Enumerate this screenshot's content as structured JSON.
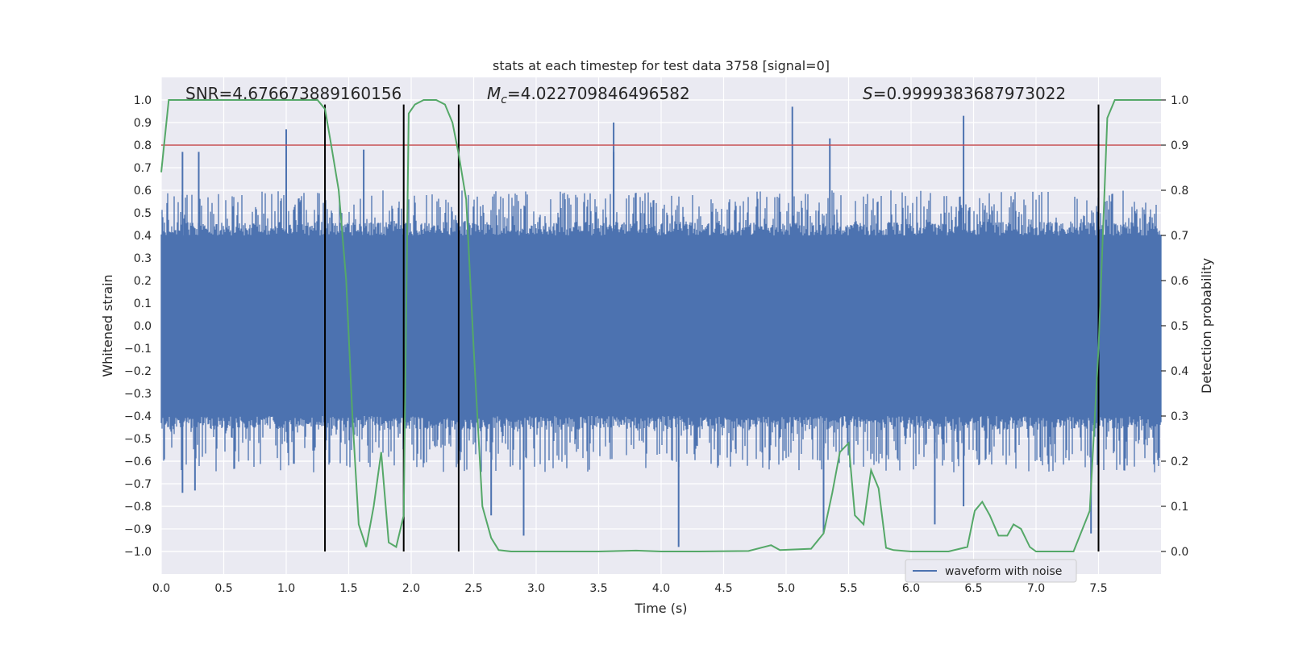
{
  "chart_data": {
    "type": "line",
    "title": "stats at each timestep for test data 3758 [signal=0]",
    "xlabel": "Time (s)",
    "ylabel": "Whitened strain",
    "y2label": "Detection probability",
    "xlim": [
      0,
      8
    ],
    "ylim": [
      -1.1,
      1.1
    ],
    "y2lim": [
      -0.05,
      1.05
    ],
    "xticks": [
      "0.0",
      "0.5",
      "1.0",
      "1.5",
      "2.0",
      "2.5",
      "3.0",
      "3.5",
      "4.0",
      "4.5",
      "5.0",
      "5.5",
      "6.0",
      "6.5",
      "7.0",
      "7.5"
    ],
    "yticks": [
      "1.0",
      "0.9",
      "0.8",
      "0.7",
      "0.6",
      "0.5",
      "0.4",
      "0.3",
      "0.2",
      "0.1",
      "0.0",
      "−0.1",
      "−0.2",
      "−0.3",
      "−0.4",
      "−0.5",
      "−0.6",
      "−0.7",
      "−0.8",
      "−0.9",
      "−1.0"
    ],
    "y2ticks": [
      "1.0",
      "0.9",
      "0.8",
      "0.7",
      "0.6",
      "0.5",
      "0.4",
      "0.3",
      "0.2",
      "0.1",
      "0.0"
    ],
    "grid": true,
    "legend": {
      "position": "lower-right",
      "entries": [
        "waveform with noise"
      ]
    },
    "annotations": {
      "snr": "SNR=4.676673889160156",
      "mc_symbol": "M",
      "mc_sub": "c",
      "mc_value": "=4.022709846496582",
      "s_symbol": "S",
      "s_value": "=0.9999383687973022"
    },
    "threshold_line": {
      "axis": "right",
      "value": 0.9,
      "color": "#c44e52"
    },
    "vertical_lines": {
      "x": [
        1.31,
        1.94,
        2.38,
        7.5
      ],
      "y_range": [
        -1.0,
        0.98
      ],
      "color": "#000000"
    },
    "waveform": {
      "name": "waveform with noise",
      "color": "#4c72b0",
      "x_range": [
        0,
        8
      ],
      "band_range": [
        -0.4,
        0.4
      ],
      "typical_peak_range": [
        -0.65,
        0.6
      ],
      "spikes": [
        {
          "x": 0.17,
          "y": 0.77
        },
        {
          "x": 0.17,
          "y": -0.74
        },
        {
          "x": 0.27,
          "y": -0.73
        },
        {
          "x": 0.3,
          "y": 0.77
        },
        {
          "x": 1.0,
          "y": 0.87
        },
        {
          "x": 1.62,
          "y": 0.78
        },
        {
          "x": 3.62,
          "y": 0.9
        },
        {
          "x": 3.62,
          "y": 0.77
        },
        {
          "x": 4.14,
          "y": -0.98
        },
        {
          "x": 5.05,
          "y": 0.97
        },
        {
          "x": 5.35,
          "y": 0.83
        },
        {
          "x": 6.42,
          "y": 0.93
        },
        {
          "x": 6.42,
          "y": -0.8
        },
        {
          "x": 2.9,
          "y": -0.93
        },
        {
          "x": 2.64,
          "y": -0.84
        },
        {
          "x": 6.19,
          "y": -0.88
        },
        {
          "x": 5.3,
          "y": -0.92
        },
        {
          "x": 7.44,
          "y": -0.92
        }
      ]
    },
    "probability": {
      "color": "#55a868",
      "x": [
        0.0,
        0.06,
        0.12,
        0.5,
        1.0,
        1.25,
        1.31,
        1.36,
        1.42,
        1.48,
        1.53,
        1.58,
        1.64,
        1.7,
        1.76,
        1.82,
        1.88,
        1.94,
        1.98,
        2.03,
        2.1,
        2.2,
        2.27,
        2.33,
        2.38,
        2.44,
        2.5,
        2.57,
        2.64,
        2.7,
        2.8,
        3.0,
        3.5,
        3.8,
        4.0,
        4.3,
        4.7,
        4.88,
        4.95,
        5.2,
        5.3,
        5.37,
        5.43,
        5.5,
        5.55,
        5.62,
        5.68,
        5.74,
        5.8,
        5.86,
        6.0,
        6.3,
        6.45,
        6.51,
        6.57,
        6.63,
        6.7,
        6.77,
        6.82,
        6.88,
        6.95,
        7.0,
        7.3,
        7.43,
        7.5,
        7.57,
        7.63,
        7.7,
        8.0
      ],
      "y": [
        0.84,
        1.0,
        1.0,
        1.0,
        1.0,
        1.0,
        0.98,
        0.9,
        0.8,
        0.6,
        0.3,
        0.06,
        0.01,
        0.1,
        0.22,
        0.02,
        0.01,
        0.08,
        0.97,
        0.99,
        1.0,
        1.0,
        0.99,
        0.95,
        0.88,
        0.78,
        0.45,
        0.1,
        0.03,
        0.003,
        0.0,
        0.0,
        0.0,
        0.002,
        0.0,
        0.0,
        0.001,
        0.014,
        0.003,
        0.006,
        0.04,
        0.13,
        0.22,
        0.24,
        0.08,
        0.06,
        0.18,
        0.14,
        0.008,
        0.003,
        0.0,
        0.0,
        0.01,
        0.09,
        0.11,
        0.08,
        0.035,
        0.035,
        0.06,
        0.05,
        0.01,
        0.0,
        0.0,
        0.09,
        0.45,
        0.96,
        1.0,
        1.0,
        1.0
      ]
    }
  }
}
